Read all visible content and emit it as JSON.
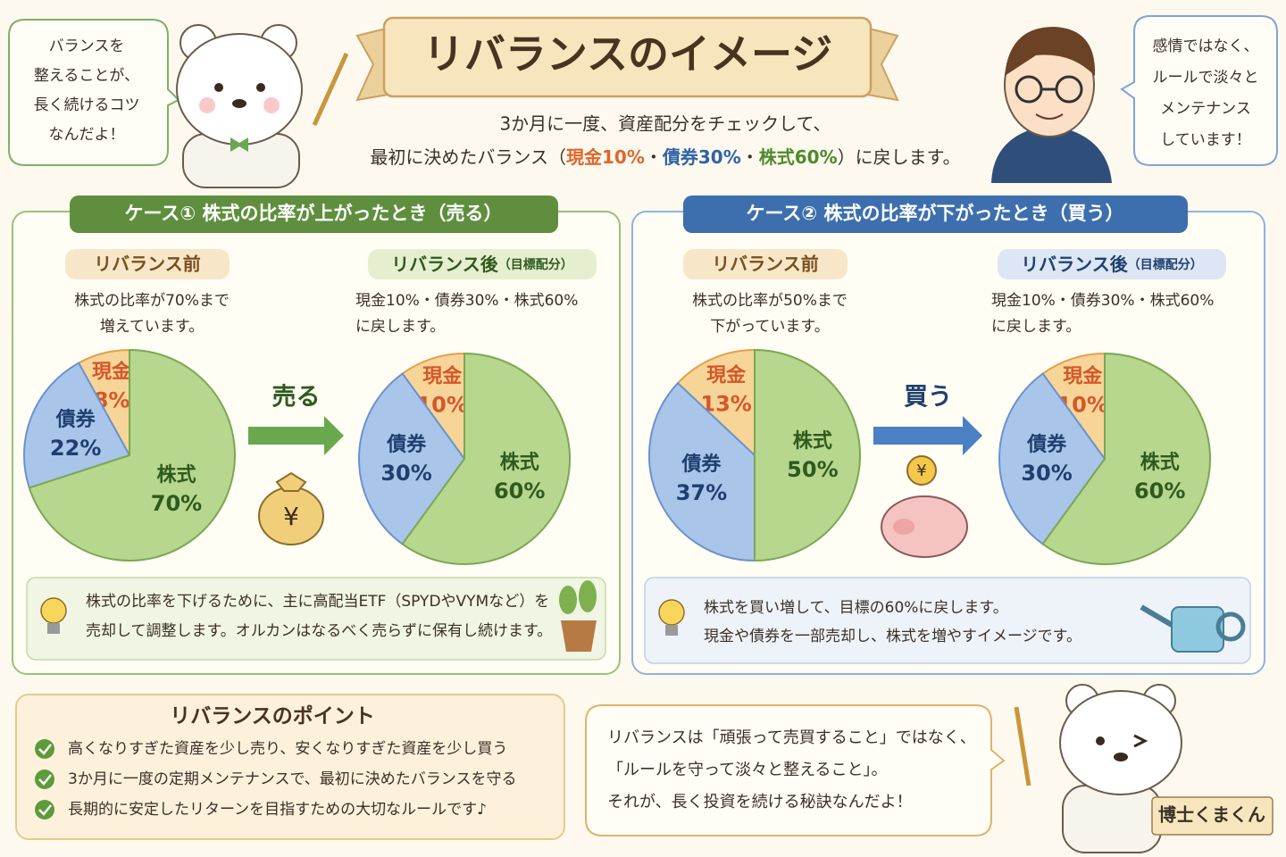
{
  "header": {
    "title": "リバランスのイメージ",
    "subtitle_line1": "3か月に一度、資産配分をチェックして、",
    "subtitle_line2": [
      "最初に決めたバランス（",
      "現金10%",
      "・",
      "債券30%",
      "・",
      "株式60%",
      "）に戻します。"
    ]
  },
  "left_bubble": [
    "バランスを",
    "整えることが、",
    "長く続けるコツ",
    "なんだよ！"
  ],
  "right_bubble": [
    "感情ではなく、",
    "ルールで淡々と",
    "メンテナンス",
    "しています！"
  ],
  "cases": [
    {
      "title": "ケース①  株式の比率が上がったとき（売る）",
      "before": {
        "label": "リバランス前",
        "desc": [
          "株式の比率が70%まで",
          "増えています。"
        ],
        "pie": {
          "type": "pie",
          "categories": [
            "現金",
            "債券",
            "株式"
          ],
          "values": [
            8,
            22,
            70
          ],
          "value_labels": [
            "8%",
            "22%",
            "70%"
          ],
          "colors": [
            "#f7d598",
            "#a9c5ea",
            "#b7d68e"
          ]
        }
      },
      "action": "売る",
      "after": {
        "label": "リバランス後",
        "label_note": "（目標配分）",
        "desc": [
          "現金10%・債券30%・株式60%",
          "に戻します。"
        ],
        "pie": {
          "type": "pie",
          "categories": [
            "現金",
            "債券",
            "株式"
          ],
          "values": [
            10,
            30,
            60
          ],
          "value_labels": [
            "10%",
            "30%",
            "60%"
          ],
          "colors": [
            "#f7d598",
            "#a9c5ea",
            "#b7d68e"
          ]
        }
      },
      "note": [
        "株式の比率を下げるために、主に高配当ETF（SPYDやVYMなど）を",
        "売却して調整します。オルカンはなるべく売らずに保有し続けます。"
      ]
    },
    {
      "title": "ケース②  株式の比率が下がったとき（買う）",
      "before": {
        "label": "リバランス前",
        "desc": [
          "株式の比率が50%まで",
          "下がっています。"
        ],
        "pie": {
          "type": "pie",
          "categories": [
            "現金",
            "債券",
            "株式"
          ],
          "values": [
            13,
            37,
            50
          ],
          "value_labels": [
            "13%",
            "37%",
            "50%"
          ],
          "colors": [
            "#f7d598",
            "#a9c5ea",
            "#b7d68e"
          ]
        }
      },
      "action": "買う",
      "after": {
        "label": "リバランス後",
        "label_note": "（目標配分）",
        "desc": [
          "現金10%・債券30%・株式60%",
          "に戻します。"
        ],
        "pie": {
          "type": "pie",
          "categories": [
            "現金",
            "債券",
            "株式"
          ],
          "values": [
            10,
            30,
            60
          ],
          "value_labels": [
            "10%",
            "30%",
            "60%"
          ],
          "colors": [
            "#f7d598",
            "#a9c5ea",
            "#b7d68e"
          ]
        }
      },
      "note": [
        "株式を買い増して、目標の60%に戻します。",
        "現金や債券を一部売却し、株式を増やすイメージです。"
      ]
    }
  ],
  "points": {
    "title": "リバランスのポイント",
    "items": [
      "高くなりすぎた資産を少し売り、安くなりすぎた資産を少し買う",
      "3か月に一度の定期メンテナンスで、最初に決めたバランスを守る",
      "長期的に安定したリターンを目指すための大切なルールです♪"
    ]
  },
  "closing": [
    "リバランスは「頑張って売買すること」ではなく、",
    "「ルールを守って淡々と整えること」。",
    "それが、長く投資を続ける秘訣なんだよ！"
  ],
  "character_name": "博士くまくん"
}
